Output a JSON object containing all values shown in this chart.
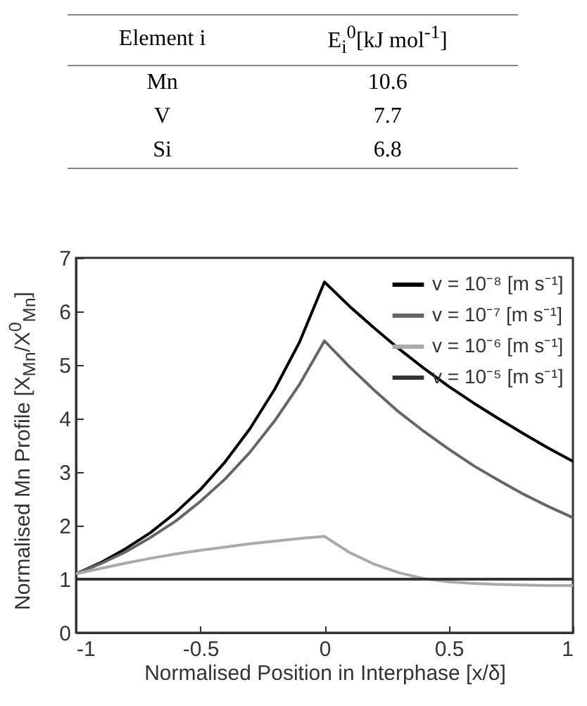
{
  "chart_data": [
    {
      "type": "other",
      "xlabel": "Element i",
      "ylabel": "E$_{i}$$^{0}$[kJ mol$^{-1}$]",
      "categories": [
        "Mn",
        "V",
        "Si"
      ],
      "values": [
        10.6,
        7.7,
        6.8
      ],
      "data_labels": true
    },
    {
      "type": "line",
      "xlabel": "Normalised Position in Interphase [x/δ]",
      "ylabel": "Normalised Mn Profile [X$_{Mn}$/X$^{0}$$_{Mn}$]",
      "x": [
        -1,
        -0.9,
        -0.8,
        -0.7,
        -0.6,
        -0.5,
        -0.4,
        -0.3,
        -0.2,
        -0.1,
        0,
        0.1,
        0.2,
        0.3,
        0.4,
        0.5,
        0.6,
        0.7,
        0.8,
        0.9,
        1
      ],
      "series": [
        {
          "name": "v = 10⁻⁸ [m s⁻¹]",
          "color": "#000000",
          "values": [
            1.1,
            1.31,
            1.57,
            1.87,
            2.24,
            2.67,
            3.19,
            3.81,
            4.55,
            5.43,
            6.55,
            6.1,
            5.69,
            5.3,
            4.94,
            4.6,
            4.29,
            4.0,
            3.72,
            3.45,
            3.2
          ]
        },
        {
          "name": "v = 10⁻⁷ [m s⁻¹]",
          "color": "#666666",
          "values": [
            1.1,
            1.29,
            1.51,
            1.78,
            2.08,
            2.45,
            2.87,
            3.37,
            3.96,
            4.64,
            5.45,
            4.97,
            4.53,
            4.12,
            3.76,
            3.43,
            3.12,
            2.85,
            2.59,
            2.36,
            2.15
          ]
        },
        {
          "name": "v = 10⁻⁶ [m s⁻¹]",
          "color": "#aaaaaa",
          "values": [
            1.1,
            1.2,
            1.3,
            1.39,
            1.47,
            1.54,
            1.6,
            1.66,
            1.71,
            1.76,
            1.8,
            1.5,
            1.28,
            1.12,
            1.01,
            0.95,
            0.92,
            0.9,
            0.89,
            0.88,
            0.88
          ]
        },
        {
          "name": "v = 10⁻⁵ [m s⁻¹]",
          "color": "#333333",
          "x": [
            -1,
            1
          ],
          "values": [
            1.0,
            1.0
          ]
        }
      ],
      "xlim": [
        -1,
        1
      ],
      "xticks": [
        -1,
        -0.5,
        0,
        0.5,
        1
      ],
      "ylim": [
        0,
        7
      ],
      "yticks": [
        0,
        1,
        2,
        3,
        4,
        5,
        6,
        7
      ],
      "grid": false,
      "legend": "top right",
      "line_style": "solid"
    }
  ]
}
